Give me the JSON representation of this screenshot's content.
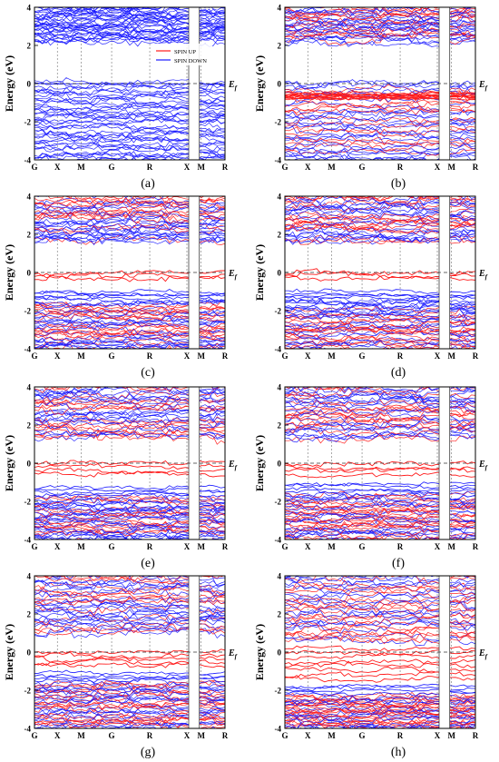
{
  "figure": {
    "legend": {
      "placement": "top-right of panel (a)",
      "items": [
        "SPIN UP",
        "SPIN DOWN"
      ]
    },
    "colors": {
      "spin_up": "#ff1a1a",
      "spin_down": "#1a1aff",
      "fermi_line": "#333333",
      "axis": "#000000"
    }
  },
  "chart_data": [
    {
      "panel": "(a)",
      "type": "line",
      "ylabel": "Energy (eV)",
      "ylim": [
        -4,
        4
      ],
      "yticks": [
        -4,
        -2,
        0,
        2,
        4
      ],
      "xticks": [
        "G",
        "X",
        "M",
        "G",
        "R",
        "X",
        "M",
        "R"
      ],
      "fermi_label": "E_f",
      "fermi_level": 0,
      "series": [
        {
          "name": "SPIN UP",
          "color": "#ff1a1a"
        },
        {
          "name": "SPIN DOWN",
          "color": "#1a1aff"
        }
      ],
      "valence_max": 0.0,
      "conduction_min": 2.2,
      "gap_region": [
        0.0,
        2.2
      ],
      "spin_split": false
    },
    {
      "panel": "(b)",
      "type": "line",
      "ylabel": "Energy (eV)",
      "ylim": [
        -4,
        4
      ],
      "yticks": [
        -4,
        -2,
        0,
        2,
        4
      ],
      "xticks": [
        "G",
        "X",
        "M",
        "G",
        "R",
        "X",
        "M",
        "R"
      ],
      "fermi_label": "E_f",
      "fermi_level": 0,
      "series": [
        {
          "name": "SPIN UP",
          "color": "#ff1a1a"
        },
        {
          "name": "SPIN DOWN",
          "color": "#1a1aff"
        }
      ],
      "valence_max": 0.0,
      "conduction_min": 2.2,
      "red_impurity_band": [
        -0.8,
        -0.5
      ],
      "spin_split": true
    },
    {
      "panel": "(c)",
      "type": "line",
      "ylabel": "Energy (eV)",
      "ylim": [
        -4,
        4
      ],
      "yticks": [
        -4,
        -2,
        0,
        2,
        4
      ],
      "xticks": [
        "G",
        "X",
        "M",
        "G",
        "R",
        "X",
        "M",
        "R"
      ],
      "fermi_label": "E_f",
      "fermi_level": 0,
      "series": [
        {
          "name": "SPIN UP",
          "color": "#ff1a1a"
        },
        {
          "name": "SPIN DOWN",
          "color": "#1a1aff"
        }
      ],
      "valence_max": -1.5,
      "conduction_min": 1.6,
      "fermi_band": [
        -0.3,
        0.0
      ],
      "spin_split": true
    },
    {
      "panel": "(d)",
      "type": "line",
      "ylabel": "Energy (eV)",
      "ylim": [
        -4,
        4
      ],
      "yticks": [
        -4,
        -2,
        0,
        2,
        4
      ],
      "xticks": [
        "G",
        "X",
        "M",
        "G",
        "R",
        "X",
        "M",
        "R"
      ],
      "fermi_label": "E_f",
      "fermi_level": 0,
      "series": [
        {
          "name": "SPIN UP",
          "color": "#ff1a1a"
        },
        {
          "name": "SPIN DOWN",
          "color": "#1a1aff"
        }
      ],
      "valence_max": -1.5,
      "conduction_min": 1.6,
      "fermi_band": [
        -0.3,
        0.0
      ],
      "spin_split": true
    },
    {
      "panel": "(e)",
      "type": "line",
      "ylabel": "Energy (eV)",
      "ylim": [
        -4,
        4
      ],
      "yticks": [
        -4,
        -2,
        0,
        2,
        4
      ],
      "xticks": [
        "G",
        "X",
        "M",
        "G",
        "R",
        "X",
        "M",
        "R"
      ],
      "fermi_label": "E_f",
      "fermi_level": 0,
      "series": [
        {
          "name": "SPIN UP",
          "color": "#ff1a1a"
        },
        {
          "name": "SPIN DOWN",
          "color": "#1a1aff"
        }
      ],
      "valence_max": -1.8,
      "conduction_min": 1.3,
      "fermi_band": [
        -0.6,
        0.0
      ],
      "spin_split": true
    },
    {
      "panel": "(f)",
      "type": "line",
      "ylabel": "Energy (eV)",
      "ylim": [
        -4,
        4
      ],
      "yticks": [
        -4,
        -2,
        0,
        2,
        4
      ],
      "xticks": [
        "G",
        "X",
        "M",
        "G",
        "R",
        "X",
        "M",
        "R"
      ],
      "fermi_label": "E_f",
      "fermi_level": 0,
      "series": [
        {
          "name": "SPIN UP",
          "color": "#ff1a1a"
        },
        {
          "name": "SPIN DOWN",
          "color": "#1a1aff"
        }
      ],
      "valence_max": -1.6,
      "conduction_min": 1.3,
      "fermi_band": [
        -0.6,
        0.0
      ],
      "spin_split": true
    },
    {
      "panel": "(g)",
      "type": "line",
      "ylabel": "Energy (eV)",
      "ylim": [
        -4,
        4
      ],
      "yticks": [
        -4,
        -2,
        0,
        2,
        4
      ],
      "xticks": [
        "G",
        "X",
        "M",
        "G",
        "R",
        "X",
        "M",
        "R"
      ],
      "fermi_label": "E_f",
      "fermi_level": 0,
      "series": [
        {
          "name": "SPIN UP",
          "color": "#ff1a1a"
        },
        {
          "name": "SPIN DOWN",
          "color": "#1a1aff"
        }
      ],
      "valence_max": -1.6,
      "conduction_min": 1.0,
      "fermi_band": [
        -0.7,
        0.0
      ],
      "spin_split": true
    },
    {
      "panel": "(h)",
      "type": "line",
      "ylabel": "Energy (eV)",
      "ylim": [
        -4,
        4
      ],
      "yticks": [
        -4,
        -2,
        0,
        2,
        4
      ],
      "xticks": [
        "G",
        "X",
        "M",
        "G",
        "R",
        "X",
        "M",
        "R"
      ],
      "fermi_label": "E_f",
      "fermi_level": 0,
      "series": [
        {
          "name": "SPIN UP",
          "color": "#ff1a1a"
        },
        {
          "name": "SPIN DOWN",
          "color": "#1a1aff"
        }
      ],
      "valence_max": -2.3,
      "conduction_min": 0.6,
      "fermi_band": [
        -1.4,
        0.2
      ],
      "spin_split": true
    }
  ]
}
